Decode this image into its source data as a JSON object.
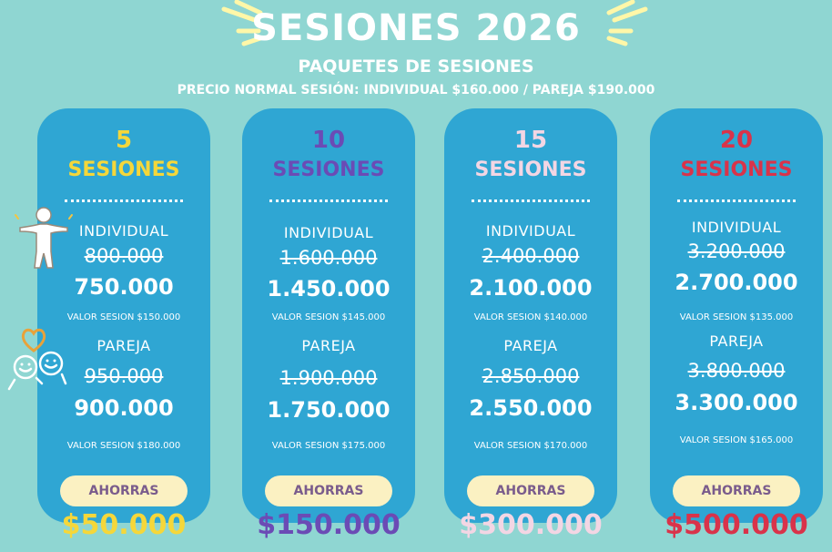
{
  "header": {
    "title": "SESIONES 2026",
    "subtitle": "PAQUETES DE SESIONES",
    "note": "PRECIO NORMAL SESIÓN: INDIVIDUAL $160.000 / PAREJA $190.000"
  },
  "colors": {
    "background": "#8fd6d2",
    "card": "#2fa6d3",
    "pill": "#fbf1c2",
    "yellow": "#f5d73a",
    "purple": "#6b4bb5",
    "pink": "#f3d6e4",
    "red": "#d9334a"
  },
  "icons": [
    "person-icon",
    "couple-icon",
    "heart-icon",
    "sun-rays-icon"
  ],
  "cards": [
    {
      "number": "5",
      "sessions_label": "SESIONES",
      "individual_label": "INDIVIDUAL",
      "individual_old": "800.000",
      "individual_new": "750.000",
      "individual_valor": "VALOR SESION $150.000",
      "pareja_label": "PAREJA",
      "pareja_old": "950.000",
      "pareja_new": "900.000",
      "pareja_valor": "VALOR SESION $180.000",
      "ahorras_label": "AHORRAS",
      "savings": "$50.000"
    },
    {
      "number": "10",
      "sessions_label": "SESIONES",
      "individual_label": "INDIVIDUAL",
      "individual_old": "1.600.000",
      "individual_new": "1.450.000",
      "individual_valor": "VALOR SESION $145.000",
      "pareja_label": "PAREJA",
      "pareja_old": "1.900.000",
      "pareja_new": "1.750.000",
      "pareja_valor": "VALOR SESION $175.000",
      "ahorras_label": "AHORRAS",
      "savings": "$150.000"
    },
    {
      "number": "15",
      "sessions_label": "SESIONES",
      "individual_label": "INDIVIDUAL",
      "individual_old": "2.400.000",
      "individual_new": "2.100.000",
      "individual_valor": "VALOR SESION $140.000",
      "pareja_label": "PAREJA",
      "pareja_old": "2.850.000",
      "pareja_new": "2.550.000",
      "pareja_valor": "VALOR SESION $170.000",
      "ahorras_label": "AHORRAS",
      "savings": "$300.000"
    },
    {
      "number": "20",
      "sessions_label": "SESIONES",
      "individual_label": "INDIVIDUAL",
      "individual_old": "3.200.000",
      "individual_new": "2.700.000",
      "individual_valor": "VALOR SESION $135.000",
      "pareja_label": "PAREJA",
      "pareja_old": "3.800.000",
      "pareja_new": "3.300.000",
      "pareja_valor": "VALOR SESION $165.000",
      "ahorras_label": "AHORRAS",
      "savings": "$500.000"
    }
  ]
}
